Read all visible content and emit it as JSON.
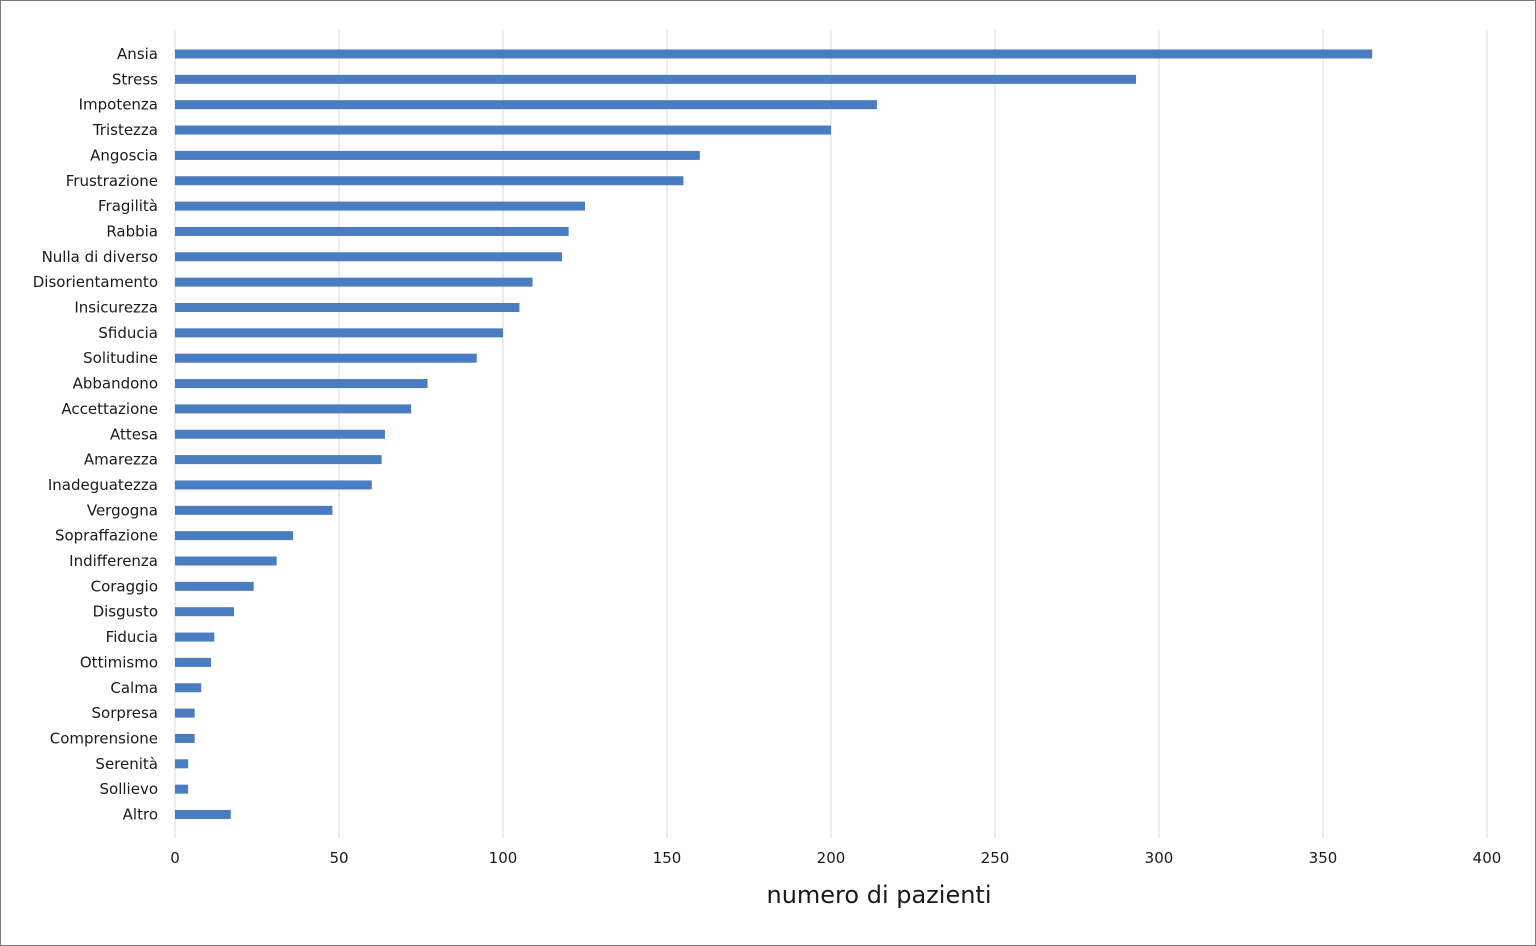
{
  "chart_data": {
    "type": "bar",
    "orientation": "horizontal",
    "title": "",
    "xlabel": "numero di pazienti",
    "ylabel": "",
    "xlim": [
      0,
      400
    ],
    "xticks": [
      0,
      50,
      100,
      150,
      200,
      250,
      300,
      350,
      400
    ],
    "grid": "vertical",
    "bar_color": "#4a7cc1",
    "grid_color": "#d9d9d9",
    "categories": [
      "Ansia",
      "Stress",
      "Impotenza",
      "Tristezza",
      "Angoscia",
      "Frustrazione",
      "Fragilità",
      "Rabbia",
      "Nulla di diverso",
      "Disorientamento",
      "Insicurezza",
      "Sfiducia",
      "Solitudine",
      "Abbandono",
      "Accettazione",
      "Attesa",
      "Amarezza",
      "Inadeguatezza",
      "Vergogna",
      "Sopraffazione",
      "Indifferenza",
      "Coraggio",
      "Disgusto",
      "Fiducia",
      "Ottimismo",
      "Calma",
      "Sorpresa",
      "Comprensione",
      "Serenità",
      "Sollievo",
      "Altro"
    ],
    "values": [
      365,
      293,
      214,
      200,
      160,
      155,
      125,
      120,
      118,
      109,
      105,
      100,
      92,
      77,
      72,
      64,
      63,
      60,
      48,
      36,
      31,
      24,
      18,
      12,
      11,
      8,
      6,
      6,
      4,
      4,
      17
    ]
  }
}
